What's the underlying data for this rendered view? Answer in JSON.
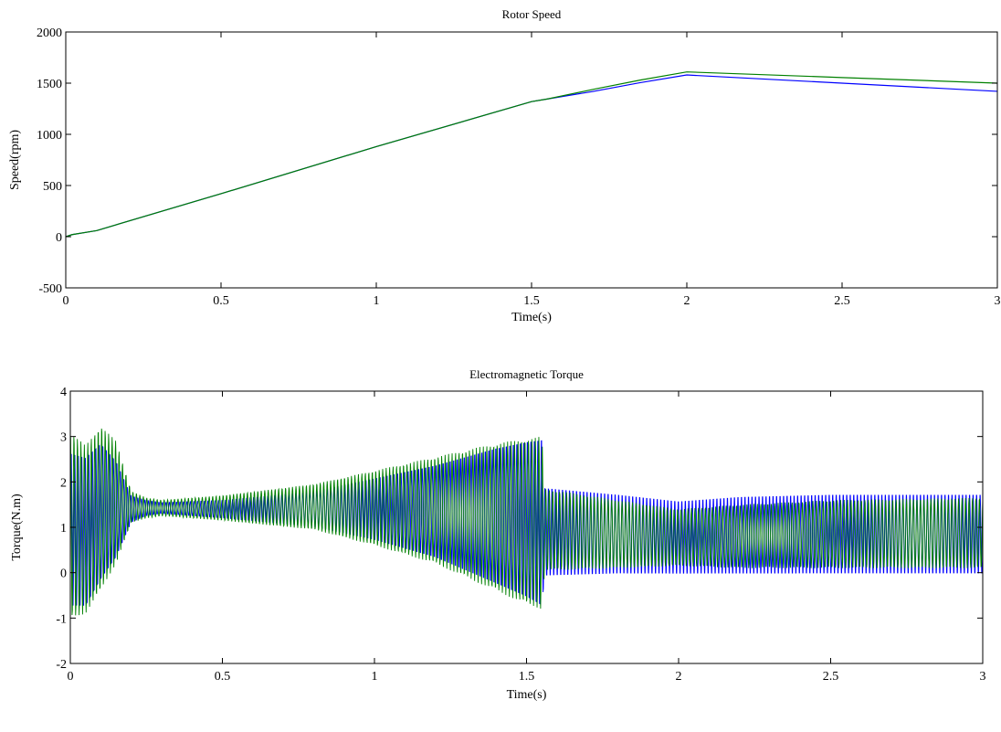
{
  "chart_data": [
    {
      "type": "line",
      "title": "Rotor Speed",
      "xlabel": "Time(s)",
      "ylabel": "Speed(rpm)",
      "xlim": [
        0,
        3
      ],
      "ylim": [
        -500,
        2000
      ],
      "xticks": [
        0,
        0.5,
        1,
        1.5,
        2,
        2.5,
        3
      ],
      "xtick_labels": [
        "0",
        "0.5",
        "1",
        "1.5",
        "2",
        "2.5",
        "3"
      ],
      "yticks": [
        -500,
        0,
        500,
        1000,
        1500,
        2000
      ],
      "ytick_labels": [
        "-500",
        "0",
        "500",
        "1000",
        "1500",
        "2000"
      ],
      "grid": false,
      "series": [
        {
          "color": "#0000ff",
          "x": [
            0,
            0.02,
            0.1,
            0.5,
            1.0,
            1.5,
            1.55,
            1.7,
            1.85,
            2.0,
            2.5,
            3.0
          ],
          "y": [
            0,
            20,
            60,
            420,
            880,
            1320,
            1345,
            1420,
            1505,
            1580,
            1500,
            1420
          ]
        },
        {
          "color": "#008000",
          "x": [
            0,
            0.02,
            0.1,
            0.5,
            1.0,
            1.5,
            1.55,
            1.7,
            1.85,
            2.0,
            2.5,
            3.0
          ],
          "y": [
            0,
            20,
            60,
            420,
            880,
            1320,
            1345,
            1440,
            1530,
            1610,
            1555,
            1500
          ]
        }
      ]
    },
    {
      "type": "line",
      "title": "Electromagnetic Torque",
      "xlabel": "Time(s)",
      "ylabel": "Torque(N.m)",
      "xlim": [
        0,
        3
      ],
      "ylim": [
        -2,
        4
      ],
      "xticks": [
        0,
        0.5,
        1,
        1.5,
        2,
        2.5,
        3
      ],
      "xtick_labels": [
        "0",
        "0.5",
        "1",
        "1.5",
        "2",
        "2.5",
        "3"
      ],
      "yticks": [
        -2,
        -1,
        0,
        1,
        2,
        3,
        4
      ],
      "ytick_labels": [
        "-2",
        "-1",
        "0",
        "1",
        "2",
        "3",
        "4"
      ],
      "grid": false,
      "series": [
        {
          "color": "#0000ff",
          "envelope": {
            "t": [
              0,
              0.05,
              0.1,
              0.15,
              0.2,
              0.25,
              0.3,
              0.5,
              0.8,
              1.0,
              1.2,
              1.4,
              1.5,
              1.55,
              1.56,
              1.8,
              2.0,
              2.2,
              2.5,
              3.0
            ],
            "upper": [
              2.7,
              2.6,
              2.9,
              2.5,
              1.7,
              1.6,
              1.55,
              1.6,
              1.8,
              2.1,
              2.4,
              2.8,
              2.95,
              3.0,
              1.9,
              1.75,
              1.6,
              1.7,
              1.75,
              1.75
            ],
            "lower": [
              -0.8,
              -0.8,
              -0.2,
              0.3,
              1.1,
              1.25,
              1.3,
              1.2,
              1.0,
              0.7,
              0.3,
              -0.3,
              -0.6,
              -0.8,
              -0.1,
              -0.05,
              -0.05,
              -0.05,
              -0.05,
              -0.05
            ]
          }
        },
        {
          "color": "#008000",
          "envelope": {
            "t": [
              0,
              0.05,
              0.1,
              0.15,
              0.2,
              0.25,
              0.3,
              0.5,
              0.8,
              1.0,
              1.2,
              1.4,
              1.5,
              1.55,
              1.56,
              1.8,
              2.0,
              2.2,
              2.5,
              3.0
            ],
            "upper": [
              3.1,
              2.8,
              3.25,
              2.9,
              1.8,
              1.65,
              1.6,
              1.7,
              1.95,
              2.25,
              2.55,
              2.85,
              2.95,
              3.0,
              1.85,
              1.6,
              1.4,
              1.5,
              1.6,
              1.65
            ],
            "lower": [
              -1.0,
              -0.9,
              -0.4,
              0.2,
              1.1,
              1.2,
              1.25,
              1.15,
              0.95,
              0.6,
              0.2,
              -0.4,
              -0.7,
              -0.8,
              0.05,
              0.1,
              0.15,
              0.1,
              0.1,
              0.1
            ]
          }
        }
      ]
    }
  ]
}
